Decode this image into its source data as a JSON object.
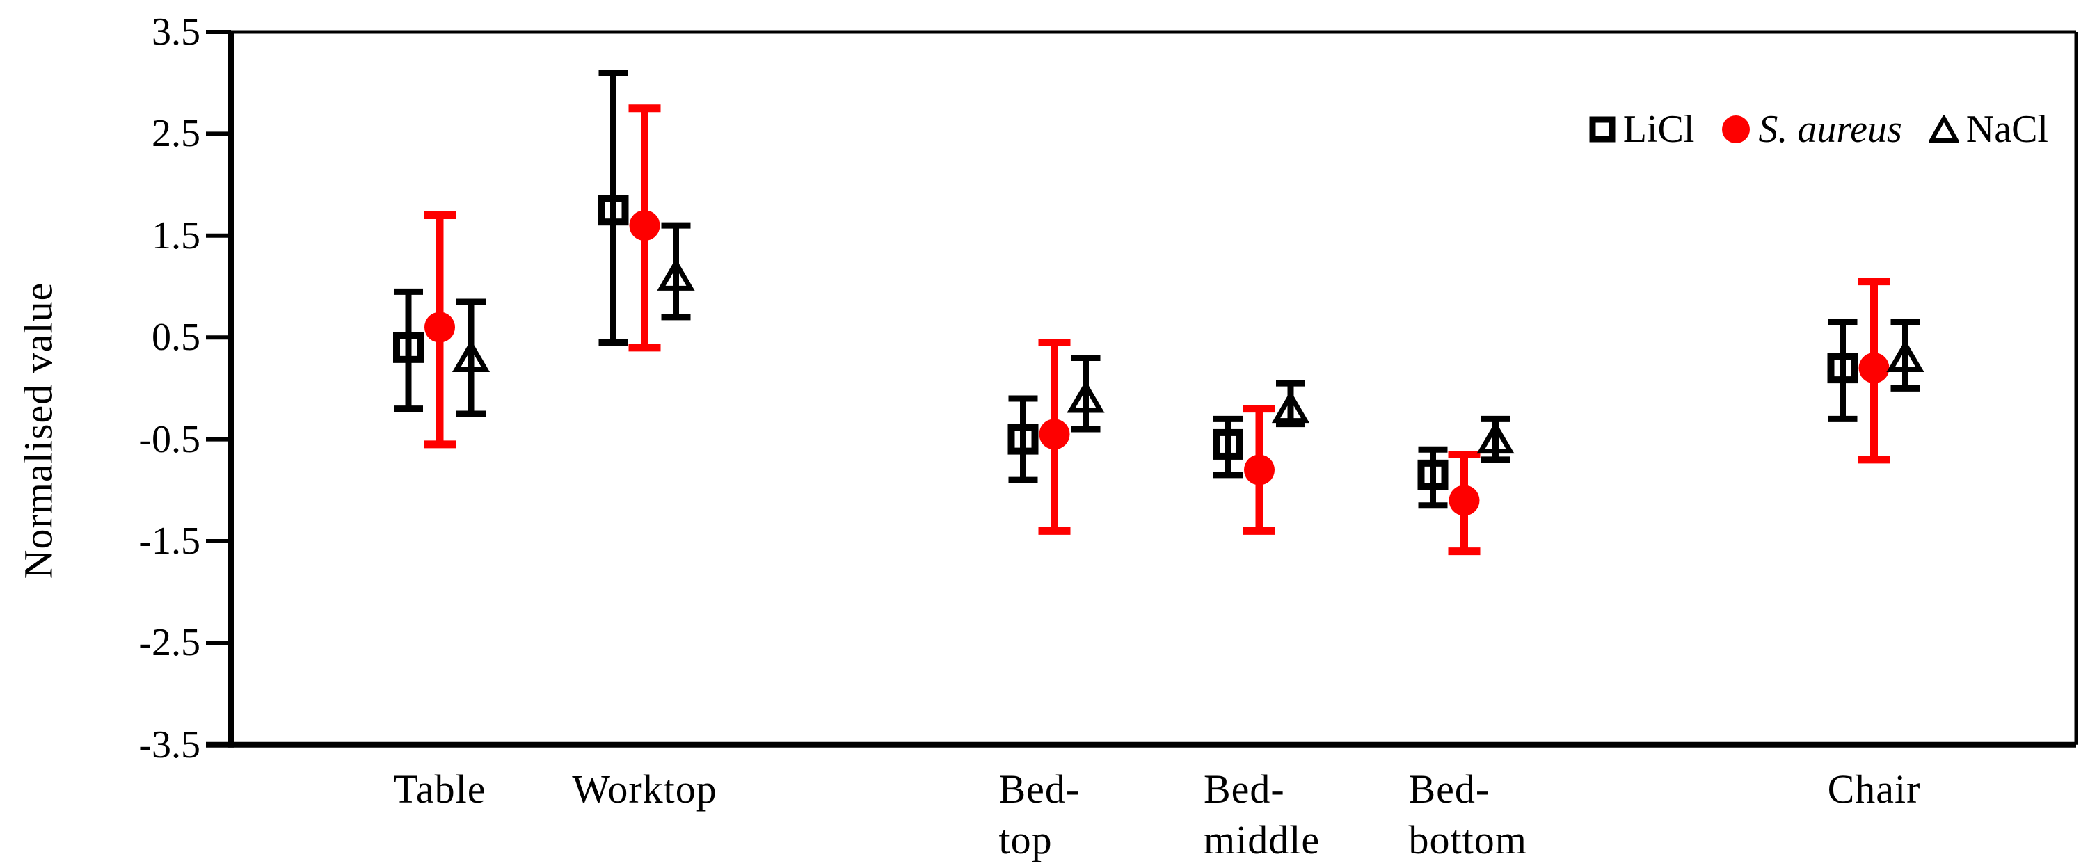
{
  "page": {
    "background": "#ffffff"
  },
  "chart_data": {
    "type": "scatter",
    "subtype": "grouped-points-with-error-bars",
    "title": "",
    "xlabel": "",
    "ylabel": "Normalised value",
    "ylim": [
      -3.5,
      3.5
    ],
    "yticks": [
      "3.5",
      "2.5",
      "1.5",
      "0.5",
      "-0.5",
      "-1.5",
      "-2.5",
      "-3.5"
    ],
    "grid": false,
    "frame": true,
    "legend_position": "top-right",
    "categories": [
      "Table",
      "Worktop",
      "Bed-top",
      "Bed-middle",
      "Bed-bottom",
      "Chair"
    ],
    "category_label_lines": [
      [
        "Table"
      ],
      [
        "Worktop"
      ],
      [
        "Bed-",
        "top"
      ],
      [
        "Bed-",
        "middle"
      ],
      [
        "Bed-",
        "bottom"
      ],
      [
        "Chair"
      ]
    ],
    "category_slots": [
      1,
      2,
      4,
      5,
      6,
      8
    ],
    "colors": {
      "black_series": "#000000",
      "red_series": "#FE0000"
    },
    "series": [
      {
        "name": "LiCl",
        "marker": "open-square",
        "color": "#000000",
        "italic": false,
        "values": [
          0.4,
          1.75,
          -0.5,
          -0.55,
          -0.85,
          0.2
        ],
        "upper": [
          0.95,
          3.1,
          -0.1,
          -0.3,
          -0.6,
          0.65
        ],
        "lower": [
          -0.2,
          0.45,
          -0.9,
          -0.85,
          -1.15,
          -0.3
        ]
      },
      {
        "name": "S. aureus",
        "marker": "filled-circle",
        "color": "#FE0000",
        "italic": true,
        "values": [
          0.6,
          1.6,
          -0.45,
          -0.8,
          -1.1,
          0.2
        ],
        "upper": [
          1.7,
          2.75,
          0.45,
          -0.2,
          -0.65,
          1.05
        ],
        "lower": [
          -0.55,
          0.4,
          -1.4,
          -1.4,
          -1.6,
          -0.7
        ]
      },
      {
        "name": "NaCl",
        "marker": "open-triangle",
        "color": "#000000",
        "italic": false,
        "values": [
          0.3,
          1.1,
          -0.1,
          -0.2,
          -0.5,
          0.3
        ],
        "upper": [
          0.85,
          1.6,
          0.3,
          0.05,
          -0.3,
          0.65
        ],
        "lower": [
          -0.25,
          0.7,
          -0.4,
          -0.35,
          -0.7,
          0.0
        ]
      }
    ]
  }
}
